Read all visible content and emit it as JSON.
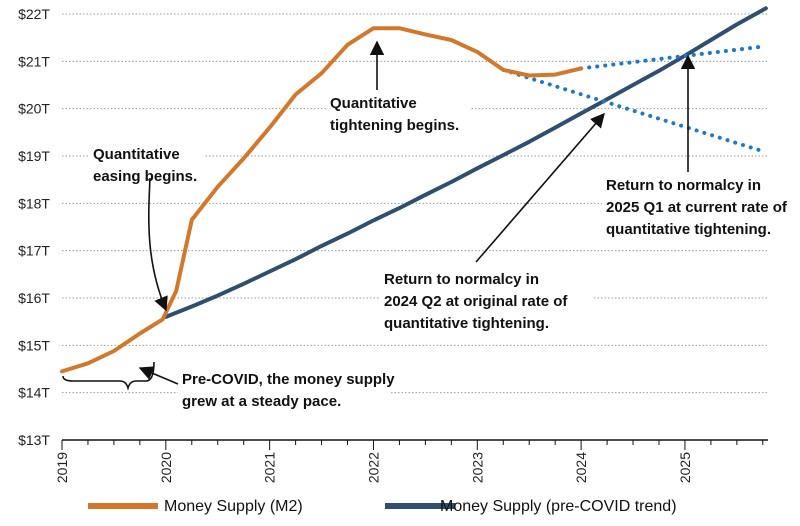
{
  "colors": {
    "m2": "#D2782B",
    "trend": "#2E4F6F",
    "forecast": "#1F78C8",
    "grid": "#9a9a9a",
    "axis": "#111111"
  },
  "chart_data": {
    "type": "line",
    "ylim": [
      13,
      22
    ],
    "xlim": [
      2019,
      2025.8
    ],
    "y_ticks": [
      {
        "v": 13,
        "label": "$13T"
      },
      {
        "v": 14,
        "label": "$14T"
      },
      {
        "v": 15,
        "label": "$15T"
      },
      {
        "v": 16,
        "label": "$16T"
      },
      {
        "v": 17,
        "label": "$17T"
      },
      {
        "v": 18,
        "label": "$18T"
      },
      {
        "v": 19,
        "label": "$19T"
      },
      {
        "v": 20,
        "label": "$20T"
      },
      {
        "v": 21,
        "label": "$21T"
      },
      {
        "v": 22,
        "label": "$22T"
      }
    ],
    "x_ticks": [
      {
        "v": 2019,
        "label": "2019"
      },
      {
        "v": 2020,
        "label": "2020"
      },
      {
        "v": 2021,
        "label": "2021"
      },
      {
        "v": 2022,
        "label": "2022"
      },
      {
        "v": 2023,
        "label": "2023"
      },
      {
        "v": 2024,
        "label": "2024"
      },
      {
        "v": 2025,
        "label": "2025"
      }
    ],
    "grid": true,
    "legend_position": "bottom",
    "series": [
      {
        "name": "Money Supply (M2)",
        "style": "solid",
        "color_key": "m2",
        "points": [
          [
            2019.0,
            14.45
          ],
          [
            2019.25,
            14.62
          ],
          [
            2019.5,
            14.88
          ],
          [
            2019.75,
            15.25
          ],
          [
            2019.97,
            15.55
          ],
          [
            2020.1,
            16.15
          ],
          [
            2020.25,
            17.65
          ],
          [
            2020.5,
            18.35
          ],
          [
            2020.75,
            18.95
          ],
          [
            2021.0,
            19.6
          ],
          [
            2021.25,
            20.3
          ],
          [
            2021.5,
            20.75
          ],
          [
            2021.75,
            21.35
          ],
          [
            2022.0,
            21.7
          ],
          [
            2022.25,
            21.7
          ],
          [
            2022.5,
            21.57
          ],
          [
            2022.75,
            21.45
          ],
          [
            2023.0,
            21.2
          ],
          [
            2023.25,
            20.82
          ],
          [
            2023.5,
            20.7
          ],
          [
            2023.75,
            20.72
          ],
          [
            2024.0,
            20.85
          ]
        ]
      },
      {
        "name": "Money Supply (pre-COVID trend)",
        "style": "solid",
        "color_key": "trend",
        "points": [
          [
            2020.0,
            15.6
          ],
          [
            2020.25,
            15.82
          ],
          [
            2020.5,
            16.05
          ],
          [
            2020.75,
            16.3
          ],
          [
            2021.0,
            16.56
          ],
          [
            2021.25,
            16.82
          ],
          [
            2021.5,
            17.1
          ],
          [
            2021.75,
            17.36
          ],
          [
            2022.0,
            17.64
          ],
          [
            2022.25,
            17.9
          ],
          [
            2022.5,
            18.18
          ],
          [
            2022.75,
            18.45
          ],
          [
            2023.0,
            18.74
          ],
          [
            2023.25,
            19.02
          ],
          [
            2023.5,
            19.3
          ],
          [
            2023.75,
            19.6
          ],
          [
            2024.0,
            19.9
          ],
          [
            2024.25,
            20.2
          ],
          [
            2024.5,
            20.5
          ],
          [
            2024.75,
            20.8
          ],
          [
            2025.0,
            21.12
          ],
          [
            2025.25,
            21.45
          ],
          [
            2025.5,
            21.78
          ],
          [
            2025.78,
            22.12
          ]
        ]
      },
      {
        "name": "",
        "style": "dotted",
        "color_key": "forecast",
        "points": [
          [
            2024.0,
            20.85
          ],
          [
            2025.78,
            21.32
          ]
        ]
      },
      {
        "name": "",
        "style": "dotted",
        "color_key": "forecast",
        "points": [
          [
            2023.25,
            20.82
          ],
          [
            2025.78,
            19.08
          ]
        ]
      }
    ],
    "annotations": [
      {
        "id": "qe",
        "lines": [
          "Quantitative",
          "easing begins."
        ]
      },
      {
        "id": "qt",
        "lines": [
          "Quantitative",
          "tightening begins."
        ]
      },
      {
        "id": "q1",
        "lines": [
          "Return to normalcy in",
          "2025 Q1 at current rate of",
          "quantitative tightening."
        ]
      },
      {
        "id": "q2",
        "lines": [
          "Return to normalcy in",
          "2024 Q2 at original rate of",
          "quantitative tightening."
        ]
      },
      {
        "id": "pre",
        "lines": [
          "Pre-COVID, the money supply",
          "grew at a steady pace."
        ]
      }
    ]
  },
  "legend": [
    {
      "label": "Money Supply (M2)",
      "color_key": "m2"
    },
    {
      "label": "Money Supply (pre-COVID trend)",
      "color_key": "trend"
    }
  ]
}
